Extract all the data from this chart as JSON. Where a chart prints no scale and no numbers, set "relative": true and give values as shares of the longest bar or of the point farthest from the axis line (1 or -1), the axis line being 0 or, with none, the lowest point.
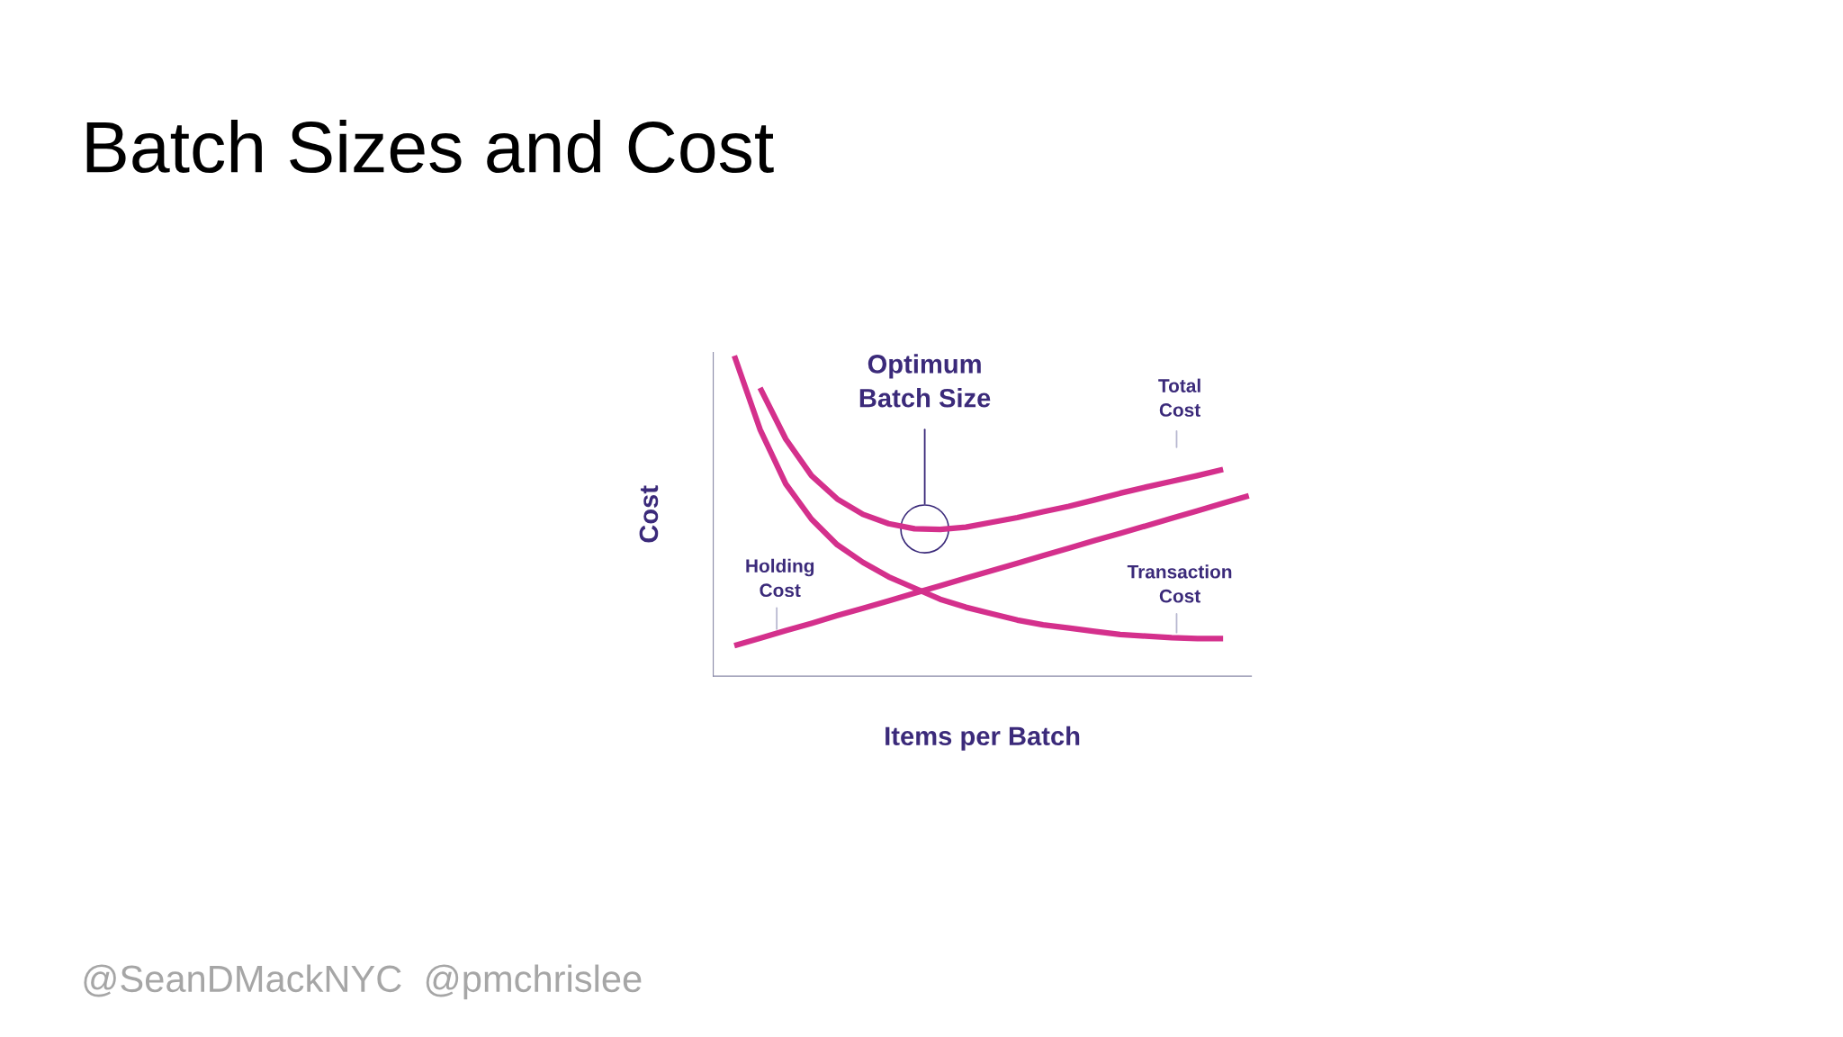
{
  "chart_data": {
    "type": "line",
    "title": "Batch Sizes and Cost",
    "xlabel": "Items per Batch",
    "ylabel": "Cost",
    "relative": true,
    "categories": [
      null,
      null,
      null,
      null,
      null,
      null,
      null,
      null,
      null,
      null,
      null,
      null,
      null,
      null,
      null,
      null,
      null,
      null,
      null,
      null,
      null
    ],
    "series": [
      {
        "color": "#d4308c",
        "values": [
          1.0,
          0.77,
          0.6,
          0.49,
          0.41,
          0.355,
          0.31,
          0.275,
          0.24,
          0.215,
          0.195,
          0.175,
          0.16,
          0.15,
          0.14,
          0.13,
          0.125,
          0.12,
          0.117,
          0.117,
          null
        ]
      },
      {
        "color": "#d4308c",
        "values": [
          null,
          0.9,
          0.74,
          0.626,
          0.553,
          0.505,
          0.476,
          0.46,
          0.458,
          0.465,
          0.48,
          0.495,
          0.513,
          0.53,
          0.55,
          0.571,
          0.59,
          0.608,
          0.626,
          0.645,
          null
        ]
      },
      {
        "color": "#d4308c",
        "values": [
          0.095,
          0.118,
          0.142,
          0.165,
          0.189,
          0.212,
          0.235,
          0.259,
          0.282,
          0.306,
          0.329,
          0.352,
          0.376,
          0.399,
          0.423,
          0.446,
          0.469,
          0.493,
          0.516,
          0.54,
          0.563
        ]
      }
    ],
    "annotations": [
      "Optimum\nBatch Size",
      "Total\nCost",
      "Holding\nCost",
      "Transaction\nCost",
      "@SeanDMackNYC  @pmchrislee"
    ],
    "legend": false,
    "marker": "none",
    "line_style": "solid"
  }
}
